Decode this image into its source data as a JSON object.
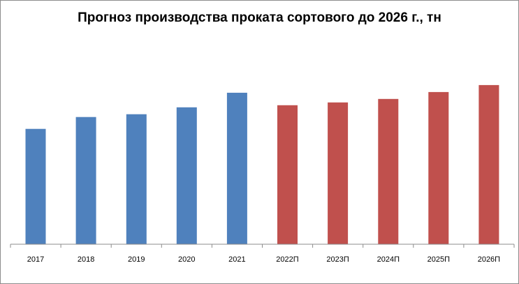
{
  "chart_data": {
    "type": "bar",
    "title": "Прогноз производства проката сортового до 2026 г., тн",
    "xlabel": "",
    "ylabel": "",
    "categories": [
      "2017",
      "2018",
      "2019",
      "2020",
      "2021",
      "2022П",
      "2023П",
      "2024П",
      "2025П",
      "2026П"
    ],
    "values": [
      166,
      183,
      187,
      197,
      218,
      200,
      204,
      209,
      219,
      229
    ],
    "ylim": [
      0,
      250
    ],
    "colors": [
      "#4f81bd",
      "#4f81bd",
      "#4f81bd",
      "#4f81bd",
      "#4f81bd",
      "#c0504d",
      "#c0504d",
      "#c0504d",
      "#c0504d",
      "#c0504d"
    ],
    "grid": false,
    "legend": "none",
    "y_tick_labels_shown": false
  }
}
